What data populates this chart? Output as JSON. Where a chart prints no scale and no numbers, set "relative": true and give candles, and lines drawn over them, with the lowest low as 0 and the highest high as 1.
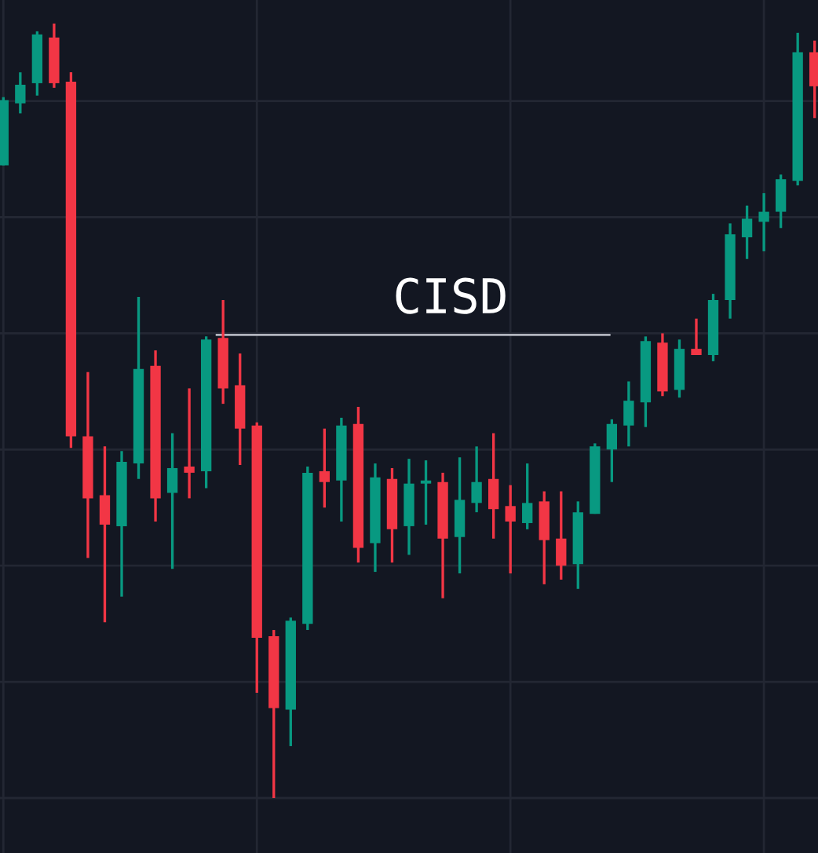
{
  "chart_data": {
    "type": "candlestick",
    "relative": true,
    "grid": true,
    "categories": [
      null,
      null,
      null,
      null,
      null,
      null,
      null,
      null,
      null,
      null,
      null,
      null,
      null,
      null,
      null,
      null,
      null,
      null,
      null,
      null,
      null,
      null,
      null,
      null,
      null,
      null,
      null,
      null,
      null,
      null,
      null,
      null,
      null,
      null,
      null,
      null,
      null,
      null,
      null,
      null,
      null,
      null,
      null,
      null,
      null,
      null,
      null,
      null,
      null
    ],
    "ohlc": [
      [
        0.817,
        0.905,
        0.817,
        0.901
      ],
      [
        0.897,
        0.937,
        0.884,
        0.921
      ],
      [
        0.923,
        0.99,
        0.907,
        0.986
      ],
      [
        0.982,
        1.0,
        0.917,
        0.923
      ],
      [
        0.925,
        0.937,
        0.452,
        0.467
      ],
      [
        0.467,
        0.55,
        0.31,
        0.387
      ],
      [
        0.391,
        0.454,
        0.227,
        0.353
      ],
      [
        0.351,
        0.448,
        0.26,
        0.434
      ],
      [
        0.432,
        0.647,
        0.412,
        0.554
      ],
      [
        0.558,
        0.578,
        0.357,
        0.387
      ],
      [
        0.394,
        0.471,
        0.296,
        0.426
      ],
      [
        0.428,
        0.529,
        0.387,
        0.42
      ],
      [
        0.422,
        0.596,
        0.4,
        0.592
      ],
      [
        0.594,
        0.643,
        0.509,
        0.529
      ],
      [
        0.533,
        0.574,
        0.43,
        0.477
      ],
      [
        0.481,
        0.485,
        0.136,
        0.207
      ],
      [
        0.209,
        0.217,
        0.0,
        0.116
      ],
      [
        0.114,
        0.233,
        0.067,
        0.229
      ],
      [
        0.225,
        0.428,
        0.217,
        0.42
      ],
      [
        0.422,
        0.477,
        0.375,
        0.408
      ],
      [
        0.41,
        0.491,
        0.357,
        0.481
      ],
      [
        0.483,
        0.505,
        0.304,
        0.323
      ],
      [
        0.329,
        0.432,
        0.292,
        0.414
      ],
      [
        0.412,
        0.426,
        0.304,
        0.347
      ],
      [
        0.351,
        0.438,
        0.314,
        0.406
      ],
      [
        0.406,
        0.436,
        0.353,
        0.408
      ],
      [
        0.408,
        0.42,
        0.258,
        0.335
      ],
      [
        0.337,
        0.44,
        0.29,
        0.385
      ],
      [
        0.381,
        0.454,
        0.369,
        0.408
      ],
      [
        0.412,
        0.471,
        0.335,
        0.373
      ],
      [
        0.377,
        0.404,
        0.29,
        0.357
      ],
      [
        0.355,
        0.432,
        0.347,
        0.381
      ],
      [
        0.383,
        0.396,
        0.276,
        0.333
      ],
      [
        0.335,
        0.396,
        0.282,
        0.3
      ],
      [
        0.302,
        0.383,
        0.27,
        0.369
      ],
      [
        0.367,
        0.458,
        0.367,
        0.454
      ],
      [
        0.45,
        0.489,
        0.408,
        0.483
      ],
      [
        0.481,
        0.538,
        0.454,
        0.513
      ],
      [
        0.511,
        0.596,
        0.479,
        0.59
      ],
      [
        0.588,
        0.6,
        0.519,
        0.525
      ],
      [
        0.527,
        0.592,
        0.517,
        0.58
      ],
      [
        0.58,
        0.619,
        0.572,
        0.572
      ],
      [
        0.572,
        0.651,
        0.564,
        0.643
      ],
      [
        0.643,
        0.742,
        0.619,
        0.728
      ],
      [
        0.724,
        0.765,
        0.696,
        0.748
      ],
      [
        0.744,
        0.781,
        0.706,
        0.757
      ],
      [
        0.757,
        0.805,
        0.736,
        0.799
      ],
      [
        0.797,
        0.988,
        0.791,
        0.963
      ],
      [
        0.963,
        0.978,
        0.878,
        0.919
      ]
    ],
    "colors": [
      "#089981",
      "#089981",
      "#089981",
      "#f23645",
      "#f23645",
      "#f23645",
      "#f23645",
      "#089981",
      "#089981",
      "#f23645",
      "#089981",
      "#f23645",
      "#089981",
      "#f23645",
      "#f23645",
      "#f23645",
      "#f23645",
      "#089981",
      "#089981",
      "#f23645",
      "#089981",
      "#f23645",
      "#089981",
      "#f23645",
      "#089981",
      "#089981",
      "#f23645",
      "#089981",
      "#089981",
      "#f23645",
      "#f23645",
      "#089981",
      "#f23645",
      "#f23645",
      "#089981",
      "#089981",
      "#089981",
      "#089981",
      "#089981",
      "#f23645",
      "#089981",
      "#f23645",
      "#089981",
      "#089981",
      "#089981",
      "#089981",
      "#089981",
      "#089981",
      "#f23645"
    ],
    "ref_lines": [
      {
        "axis": "y",
        "value": 0.598,
        "label": "CISD",
        "color": "#b2b5be"
      }
    ]
  }
}
